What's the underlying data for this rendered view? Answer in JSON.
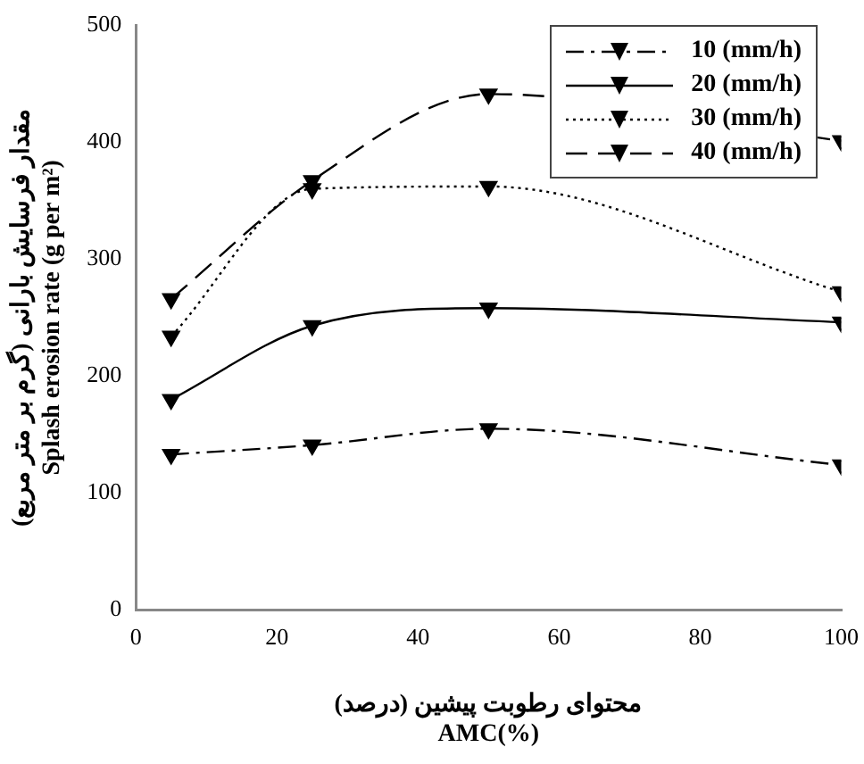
{
  "chart_data": {
    "type": "line",
    "xlabel": "محتوای رطوبت پیشین (درصد)\nAMC(%)",
    "ylabel": "مقدار فرسایش بارانی (گرم بر متر مربع)\nSplash erosion rate (g per m²)",
    "x": [
      5,
      25,
      50,
      100
    ],
    "series": [
      {
        "name": "10 (mm/h)",
        "color": "#000000",
        "line_style": "dashdot",
        "values": [
          133,
          141,
          155,
          124
        ]
      },
      {
        "name": "20 (mm/h)",
        "color": "#000000",
        "line_style": "solid",
        "values": [
          180,
          243,
          258,
          246
        ]
      },
      {
        "name": "30 (mm/h)",
        "color": "#000000",
        "line_style": "dotted",
        "values": [
          234,
          360,
          362,
          272
        ]
      },
      {
        "name": "40 (mm/h)",
        "color": "#000000",
        "line_style": "dashed",
        "values": [
          266,
          367,
          441,
          401
        ]
      }
    ],
    "xlim": [
      0,
      100
    ],
    "xticks": [
      0,
      20,
      40,
      60,
      80,
      100
    ],
    "ylim": [
      0,
      500
    ],
    "yticks": [
      0,
      100,
      200,
      300,
      400,
      500
    ],
    "grid": false,
    "legend": "top right",
    "marker": "triangle"
  }
}
